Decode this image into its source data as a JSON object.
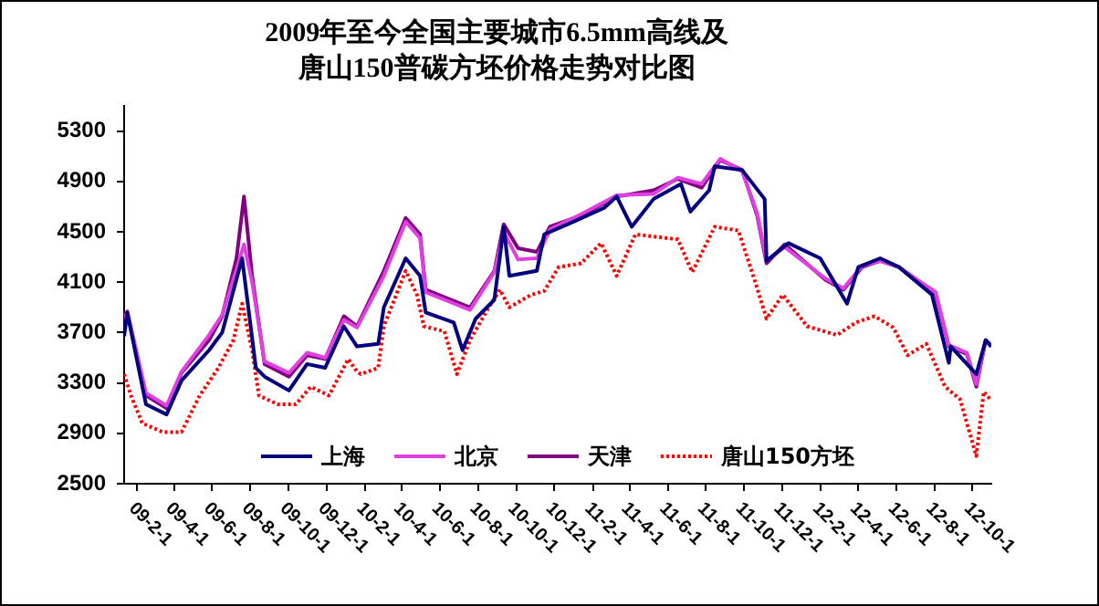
{
  "chart_data": {
    "type": "line",
    "title": "2009年至今全国主要城市6.5mm高线及唐山150普碳方坯价格走势对比图",
    "xlim": [
      "2009-01-11",
      "2012-10-31"
    ],
    "xticks": [
      {
        "value": "2009-02-01",
        "label": "09-2-1"
      },
      {
        "value": "2009-04-01",
        "label": "09-4-1"
      },
      {
        "value": "2009-06-01",
        "label": "09-6-1"
      },
      {
        "value": "2009-08-01",
        "label": "09-8-1"
      },
      {
        "value": "2009-10-01",
        "label": "09-10-1"
      },
      {
        "value": "2009-12-01",
        "label": "09-12-1"
      },
      {
        "value": "2010-02-01",
        "label": "10-2-1"
      },
      {
        "value": "2010-04-01",
        "label": "10-4-1"
      },
      {
        "value": "2010-06-01",
        "label": "10-6-1"
      },
      {
        "value": "2010-08-01",
        "label": "10-8-1"
      },
      {
        "value": "2010-10-01",
        "label": "10-10-1"
      },
      {
        "value": "2010-12-01",
        "label": "10-12-1"
      },
      {
        "value": "2011-02-01",
        "label": "11-2-1"
      },
      {
        "value": "2011-04-01",
        "label": "11-4-1"
      },
      {
        "value": "2011-06-01",
        "label": "11-6-1"
      },
      {
        "value": "2011-08-01",
        "label": "11-8-1"
      },
      {
        "value": "2011-10-01",
        "label": "11-10-1"
      },
      {
        "value": "2011-12-01",
        "label": "11-12-1"
      },
      {
        "value": "2012-02-01",
        "label": "12-2-1"
      },
      {
        "value": "2012-04-01",
        "label": "12-4-1"
      },
      {
        "value": "2012-06-01",
        "label": "12-6-1"
      },
      {
        "value": "2012-08-01",
        "label": "12-8-1"
      },
      {
        "value": "2012-10-01",
        "label": "12-10-1"
      }
    ],
    "ylim": [
      2500,
      5500
    ],
    "yticks": [
      2500,
      2900,
      3300,
      3700,
      4100,
      4500,
      4900,
      5300
    ],
    "legend": "bottom",
    "line_style": "solid",
    "series": [
      {
        "name": "上海",
        "color": "#000080",
        "x": [
          "2009-01-11",
          "2009-01-16",
          "2009-02-15",
          "2009-03-20",
          "2009-04-13",
          "2009-05-27",
          "2009-06-17",
          "2009-07-19",
          "2009-08-10",
          "2009-08-24",
          "2009-10-02",
          "2009-10-31",
          "2009-11-29",
          "2009-12-29",
          "2010-01-19",
          "2010-02-22",
          "2010-03-03",
          "2010-04-07",
          "2010-04-30",
          "2010-05-09",
          "2010-06-23",
          "2010-07-07",
          "2010-07-28",
          "2010-08-27",
          "2010-09-11",
          "2010-09-20",
          "2010-11-03",
          "2010-11-15",
          "2011-01-01",
          "2011-02-19",
          "2011-03-11",
          "2011-04-04",
          "2011-05-09",
          "2011-06-22",
          "2011-07-07",
          "2011-08-06",
          "2011-08-15",
          "2011-09-28",
          "2011-11-03",
          "2011-11-06",
          "2011-12-11",
          "2012-01-31",
          "2012-03-14",
          "2012-04-01",
          "2012-05-06",
          "2012-06-05",
          "2012-07-28",
          "2012-08-24",
          "2012-08-27",
          "2012-10-07",
          "2012-10-22",
          "2012-10-31"
        ],
        "values": [
          3670,
          3860,
          3130,
          3050,
          3320,
          3560,
          3700,
          4290,
          3420,
          3350,
          3240,
          3450,
          3420,
          3750,
          3590,
          3610,
          3900,
          4290,
          4150,
          3860,
          3780,
          3560,
          3810,
          3960,
          4540,
          4150,
          4190,
          4480,
          4580,
          4690,
          4780,
          4540,
          4760,
          4880,
          4660,
          4830,
          5020,
          4990,
          4760,
          4270,
          4410,
          4290,
          3930,
          4220,
          4290,
          4220,
          4000,
          3460,
          3590,
          3370,
          3640,
          3590
        ]
      },
      {
        "name": "北京",
        "color": "#e040e0",
        "x": [
          "2009-01-11",
          "2009-01-16",
          "2009-02-15",
          "2009-03-20",
          "2009-04-13",
          "2009-05-27",
          "2009-06-17",
          "2009-07-10",
          "2009-07-22",
          "2009-08-04",
          "2009-08-24",
          "2009-10-02",
          "2009-10-31",
          "2009-11-29",
          "2009-12-29",
          "2010-01-19",
          "2010-03-03",
          "2010-04-07",
          "2010-04-30",
          "2010-05-09",
          "2010-07-19",
          "2010-08-27",
          "2010-09-11",
          "2010-10-04",
          "2010-11-03",
          "2010-11-24",
          "2011-01-13",
          "2011-03-11",
          "2011-05-09",
          "2011-06-17",
          "2011-07-25",
          "2011-08-24",
          "2011-09-28",
          "2011-10-22",
          "2011-11-06",
          "2011-12-05",
          "2012-02-08",
          "2012-03-08",
          "2012-04-07",
          "2012-05-06",
          "2012-06-05",
          "2012-08-03",
          "2012-08-24",
          "2012-09-22",
          "2012-10-07",
          "2012-10-22",
          "2012-10-31"
        ],
        "values": [
          3800,
          3870,
          3220,
          3120,
          3390,
          3680,
          3840,
          4200,
          4400,
          4100,
          3470,
          3380,
          3540,
          3500,
          3800,
          3740,
          4150,
          4580,
          4450,
          4020,
          3880,
          4180,
          4500,
          4280,
          4290,
          4520,
          4640,
          4790,
          4800,
          4930,
          4880,
          5080,
          4980,
          4650,
          4270,
          4380,
          4130,
          4050,
          4230,
          4270,
          4220,
          4020,
          3600,
          3540,
          3290,
          3640,
          3600
        ]
      },
      {
        "name": "天津",
        "color": "#800080",
        "x": [
          "2009-01-11",
          "2009-01-16",
          "2009-02-15",
          "2009-03-20",
          "2009-04-13",
          "2009-05-27",
          "2009-06-17",
          "2009-07-10",
          "2009-07-22",
          "2009-08-04",
          "2009-08-24",
          "2009-10-02",
          "2009-10-31",
          "2009-11-29",
          "2009-12-29",
          "2010-01-19",
          "2010-03-03",
          "2010-04-07",
          "2010-04-30",
          "2010-05-09",
          "2010-07-19",
          "2010-08-27",
          "2010-09-11",
          "2010-10-04",
          "2010-11-03",
          "2010-11-24",
          "2011-01-13",
          "2011-03-11",
          "2011-05-09",
          "2011-06-17",
          "2011-07-25",
          "2011-08-24",
          "2011-09-28",
          "2011-10-22",
          "2011-11-06",
          "2011-12-05",
          "2012-02-08",
          "2012-03-08",
          "2012-04-07",
          "2012-05-06",
          "2012-06-05",
          "2012-08-03",
          "2012-08-24",
          "2012-09-22",
          "2012-10-07",
          "2012-10-22",
          "2012-10-31"
        ],
        "values": [
          3740,
          3860,
          3200,
          3100,
          3380,
          3640,
          3830,
          4290,
          4780,
          4150,
          3450,
          3350,
          3520,
          3490,
          3830,
          3750,
          4190,
          4610,
          4480,
          4040,
          3900,
          4190,
          4560,
          4370,
          4340,
          4540,
          4630,
          4780,
          4830,
          4920,
          4850,
          5070,
          4990,
          4630,
          4250,
          4400,
          4120,
          4040,
          4220,
          4270,
          4220,
          4000,
          3590,
          3530,
          3270,
          3640,
          3590
        ]
      },
      {
        "name": "唐山150方坯",
        "color": "#ff0000",
        "line_style": "dotted",
        "x": [
          "2009-01-11",
          "2009-01-22",
          "2009-02-09",
          "2009-03-14",
          "2009-04-13",
          "2009-05-12",
          "2009-06-11",
          "2009-07-05",
          "2009-07-19",
          "2009-08-04",
          "2009-08-15",
          "2009-09-14",
          "2009-10-13",
          "2009-11-06",
          "2009-12-05",
          "2010-01-05",
          "2010-01-19",
          "2010-01-25",
          "2010-02-22",
          "2010-03-03",
          "2010-04-07",
          "2010-04-25",
          "2010-05-06",
          "2010-06-08",
          "2010-06-28",
          "2010-07-19",
          "2010-08-18",
          "2010-09-05",
          "2010-09-20",
          "2010-10-25",
          "2010-11-15",
          "2010-12-08",
          "2011-01-13",
          "2011-02-14",
          "2011-03-11",
          "2011-04-10",
          "2011-06-17",
          "2011-07-10",
          "2011-08-09",
          "2011-08-15",
          "2011-09-22",
          "2011-10-19",
          "2011-11-06",
          "2011-12-02",
          "2012-01-10",
          "2012-02-27",
          "2012-03-28",
          "2012-04-27",
          "2012-05-27",
          "2012-06-19",
          "2012-07-19",
          "2012-08-18",
          "2012-09-11",
          "2012-10-07",
          "2012-10-19",
          "2012-10-31"
        ],
        "values": [
          3370,
          3200,
          2980,
          2910,
          2910,
          3200,
          3420,
          3640,
          3930,
          3560,
          3200,
          3130,
          3130,
          3270,
          3200,
          3490,
          3390,
          3370,
          3420,
          3750,
          4190,
          4000,
          3750,
          3710,
          3370,
          3640,
          3900,
          4040,
          3900,
          4000,
          4030,
          4220,
          4250,
          4410,
          4150,
          4480,
          4440,
          4180,
          4480,
          4540,
          4510,
          4100,
          3810,
          4000,
          3750,
          3680,
          3780,
          3830,
          3740,
          3520,
          3610,
          3270,
          3170,
          2720,
          3230,
          3160
        ]
      }
    ]
  }
}
